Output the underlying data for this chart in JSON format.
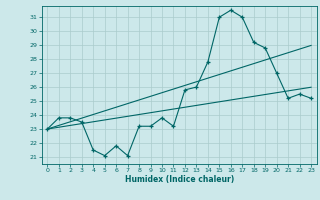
{
  "xlabel": "Humidex (Indice chaleur)",
  "bg_color": "#cce8ea",
  "grid_color": "#aacccc",
  "line_color": "#006666",
  "xlim": [
    -0.5,
    23.5
  ],
  "ylim": [
    20.5,
    31.8
  ],
  "xticks": [
    0,
    1,
    2,
    3,
    4,
    5,
    6,
    7,
    8,
    9,
    10,
    11,
    12,
    13,
    14,
    15,
    16,
    17,
    18,
    19,
    20,
    21,
    22,
    23
  ],
  "yticks": [
    21,
    22,
    23,
    24,
    25,
    26,
    27,
    28,
    29,
    30,
    31
  ],
  "x": [
    0,
    1,
    2,
    3,
    4,
    5,
    6,
    7,
    8,
    9,
    10,
    11,
    12,
    13,
    14,
    15,
    16,
    17,
    18,
    19,
    20,
    21,
    22,
    23
  ],
  "y_main": [
    23.0,
    23.8,
    23.8,
    23.5,
    21.5,
    21.1,
    21.8,
    21.1,
    23.2,
    23.2,
    23.8,
    23.2,
    25.8,
    26.0,
    27.8,
    31.0,
    31.5,
    31.0,
    29.2,
    28.8,
    27.0,
    25.2,
    25.5,
    25.2
  ],
  "y_reg1": [
    23.0,
    23.13,
    23.26,
    23.39,
    23.52,
    23.65,
    23.78,
    23.91,
    24.04,
    24.17,
    24.3,
    24.43,
    24.56,
    24.69,
    24.82,
    24.95,
    25.08,
    25.21,
    25.34,
    25.47,
    25.6,
    25.73,
    25.86,
    25.99
  ],
  "y_reg2": [
    23.0,
    23.26,
    23.52,
    23.78,
    24.04,
    24.3,
    24.56,
    24.82,
    25.08,
    25.34,
    25.6,
    25.86,
    26.12,
    26.38,
    26.64,
    26.9,
    27.16,
    27.42,
    27.68,
    27.94,
    28.2,
    28.46,
    28.72,
    28.98
  ]
}
